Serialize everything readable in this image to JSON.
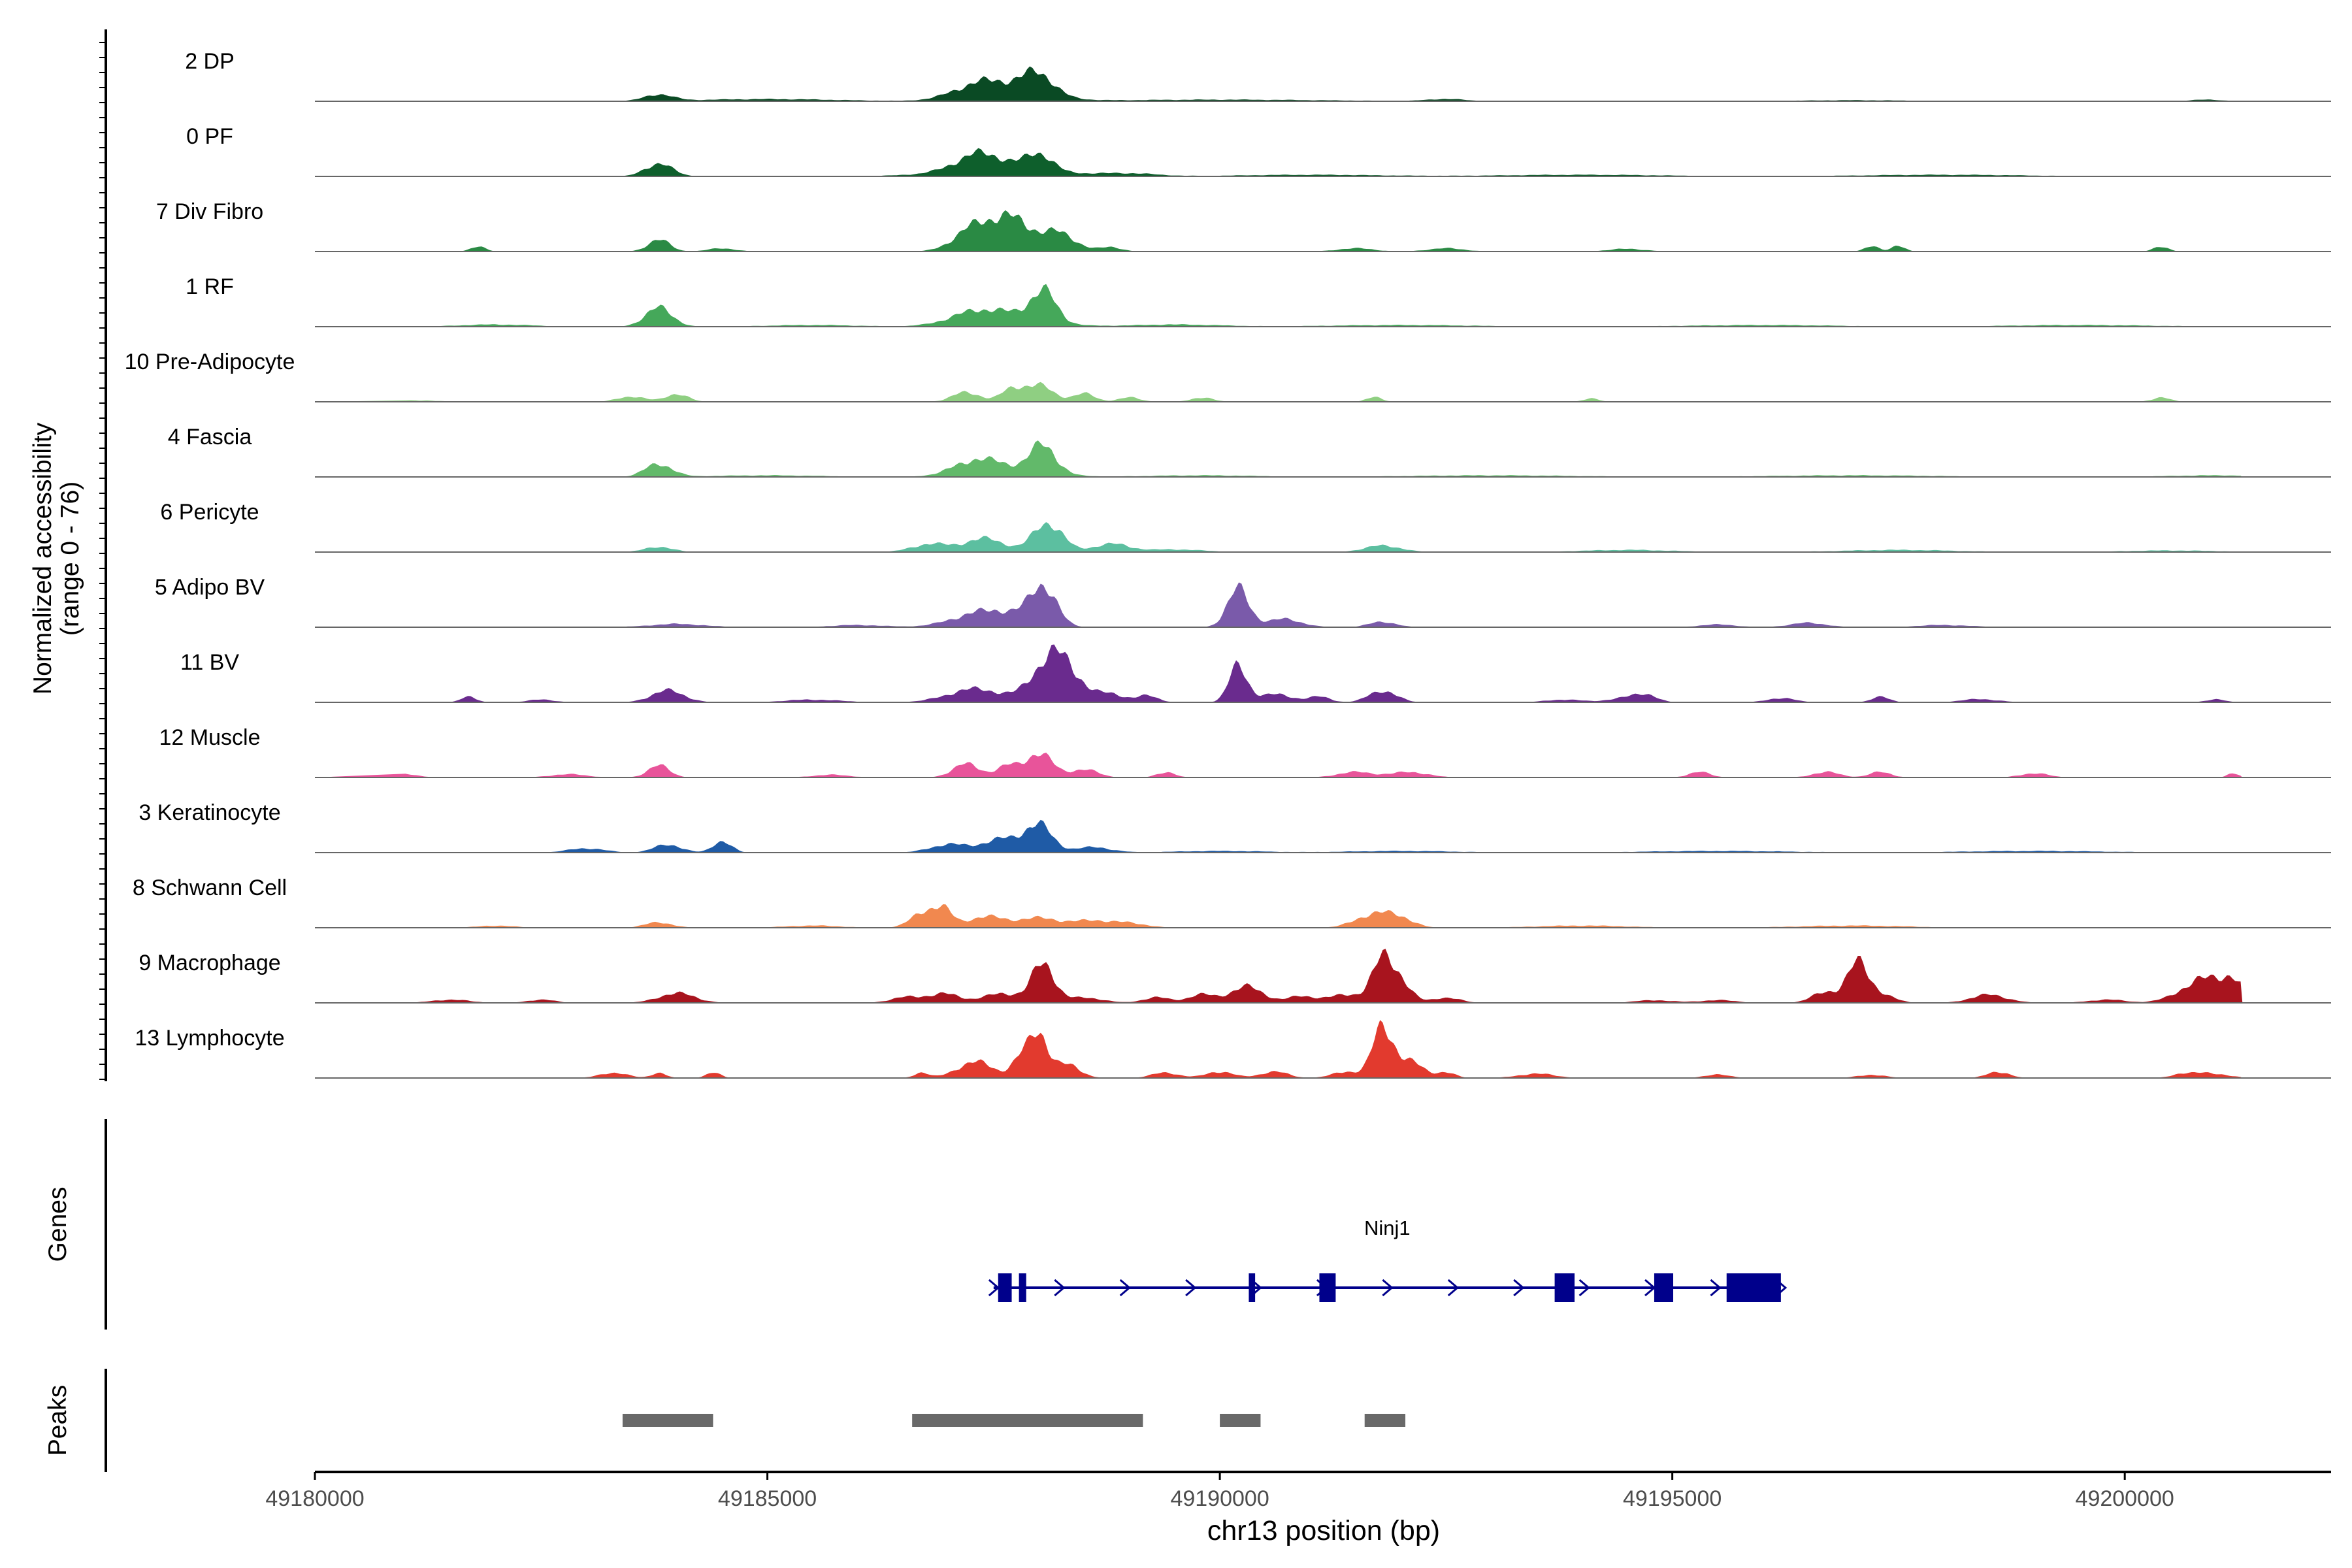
{
  "chart_data": {
    "type": "area",
    "title": "",
    "ylabel_lines": [
      "Normalized accessibility",
      "(range 0 - 76)"
    ],
    "y_range": [
      0,
      76
    ],
    "xlabel": "chr13 position (bp)",
    "chromosome": "chr13",
    "xlim": [
      49180000,
      49202280
    ],
    "x_ticks": [
      49180000,
      49185000,
      49190000,
      49195000,
      49200000
    ],
    "x_tick_labels": [
      "49180000",
      "49185000",
      "49190000",
      "49195000",
      "49200000"
    ],
    "tracks": [
      {
        "name": "2 DP",
        "color": "#0a4a24",
        "peaks": [
          [
            49183800,
            0.12,
            150
          ],
          [
            49187350,
            0.28,
            300
          ],
          [
            49188000,
            0.35,
            160
          ],
          [
            49187800,
            0.2,
            350
          ],
          [
            49185000,
            0.04,
            800
          ],
          [
            49190000,
            0.03,
            1200
          ],
          [
            49192500,
            0.04,
            200
          ],
          [
            49197000,
            0.02,
            600
          ],
          [
            49200900,
            0.03,
            180
          ]
        ]
      },
      {
        "name": "0 PF",
        "color": "#0e5f2c",
        "peaks": [
          [
            49183800,
            0.24,
            150
          ],
          [
            49187350,
            0.3,
            250
          ],
          [
            49188000,
            0.32,
            140
          ],
          [
            49187600,
            0.15,
            600
          ],
          [
            49189000,
            0.05,
            300
          ],
          [
            49191000,
            0.03,
            800
          ],
          [
            49194000,
            0.03,
            900
          ],
          [
            49198000,
            0.03,
            900
          ]
        ]
      },
      {
        "name": "7 Div Fibro",
        "color": "#2a8a44",
        "peaks": [
          [
            49181800,
            0.1,
            80
          ],
          [
            49183800,
            0.22,
            120
          ],
          [
            49184500,
            0.06,
            150
          ],
          [
            49187300,
            0.45,
            220
          ],
          [
            49187700,
            0.55,
            200
          ],
          [
            49188200,
            0.35,
            200
          ],
          [
            49188800,
            0.08,
            120
          ],
          [
            49191500,
            0.06,
            200
          ],
          [
            49192500,
            0.06,
            200
          ],
          [
            49194500,
            0.05,
            200
          ],
          [
            49197200,
            0.1,
            80
          ],
          [
            49197500,
            0.12,
            70
          ],
          [
            49200400,
            0.1,
            80
          ]
        ]
      },
      {
        "name": "1 RF",
        "color": "#45a85a",
        "peaks": [
          [
            49183800,
            0.35,
            150
          ],
          [
            49187300,
            0.2,
            300
          ],
          [
            49188050,
            0.55,
            140
          ],
          [
            49187700,
            0.18,
            400
          ],
          [
            49182000,
            0.04,
            400
          ],
          [
            49185500,
            0.03,
            500
          ],
          [
            49189500,
            0.04,
            500
          ],
          [
            49192000,
            0.03,
            800
          ],
          [
            49196000,
            0.03,
            800
          ],
          [
            49199500,
            0.03,
            800
          ]
        ]
      },
      {
        "name": "10 Pre-Adipocyte",
        "color": "#8fcf82",
        "peaks": [
          [
            49183500,
            0.1,
            150
          ],
          [
            49184000,
            0.15,
            120
          ],
          [
            49187200,
            0.18,
            150
          ],
          [
            49187700,
            0.22,
            120
          ],
          [
            49188000,
            0.3,
            160
          ],
          [
            49188500,
            0.15,
            120
          ],
          [
            49189000,
            0.08,
            120
          ],
          [
            49189800,
            0.08,
            120
          ],
          [
            49191700,
            0.1,
            80
          ],
          [
            49194100,
            0.07,
            80
          ],
          [
            49200400,
            0.08,
            100
          ],
          [
            49181000,
            0.03,
            300
          ]
        ]
      },
      {
        "name": "4 Fascia",
        "color": "#62b96a",
        "peaks": [
          [
            49183800,
            0.24,
            150
          ],
          [
            49187300,
            0.24,
            250
          ],
          [
            49188050,
            0.5,
            140
          ],
          [
            49187700,
            0.15,
            400
          ],
          [
            49185000,
            0.03,
            600
          ],
          [
            49189800,
            0.03,
            600
          ],
          [
            49193000,
            0.03,
            900
          ],
          [
            49197000,
            0.03,
            900
          ],
          [
            49201000,
            0.03,
            500
          ]
        ]
      },
      {
        "name": "6 Pericyte",
        "color": "#5cbfa0",
        "peaks": [
          [
            49183800,
            0.1,
            150
          ],
          [
            49186800,
            0.15,
            200
          ],
          [
            49187400,
            0.25,
            220
          ],
          [
            49188100,
            0.55,
            160
          ],
          [
            49188800,
            0.15,
            200
          ],
          [
            49189500,
            0.05,
            300
          ],
          [
            49191800,
            0.12,
            200
          ],
          [
            49194500,
            0.04,
            500
          ],
          [
            49197500,
            0.04,
            600
          ],
          [
            49200500,
            0.03,
            500
          ]
        ]
      },
      {
        "name": "5 Adipo BV",
        "color": "#7a5aaa",
        "peaks": [
          [
            49187300,
            0.2,
            300
          ],
          [
            49188050,
            0.7,
            140
          ],
          [
            49187700,
            0.2,
            300
          ],
          [
            49190200,
            0.7,
            120
          ],
          [
            49190700,
            0.15,
            200
          ],
          [
            49191800,
            0.1,
            150
          ],
          [
            49184000,
            0.06,
            300
          ],
          [
            49186000,
            0.04,
            300
          ],
          [
            49195500,
            0.05,
            200
          ],
          [
            49196500,
            0.08,
            200
          ],
          [
            49198000,
            0.04,
            300
          ]
        ]
      },
      {
        "name": "11 BV",
        "color": "#6a2b8e",
        "peaks": [
          [
            49181700,
            0.12,
            80
          ],
          [
            49183900,
            0.22,
            180
          ],
          [
            49187300,
            0.25,
            300
          ],
          [
            49188100,
            0.6,
            200
          ],
          [
            49188300,
            0.45,
            200
          ],
          [
            49188800,
            0.15,
            150
          ],
          [
            49189200,
            0.12,
            120
          ],
          [
            49190200,
            0.65,
            100
          ],
          [
            49190600,
            0.15,
            200
          ],
          [
            49191100,
            0.1,
            120
          ],
          [
            49191800,
            0.22,
            150
          ],
          [
            49193800,
            0.05,
            200
          ],
          [
            49194500,
            0.08,
            200
          ],
          [
            49194700,
            0.12,
            120
          ],
          [
            49196200,
            0.08,
            150
          ],
          [
            49197300,
            0.1,
            100
          ],
          [
            49198400,
            0.06,
            200
          ],
          [
            49201000,
            0.06,
            100
          ],
          [
            49182500,
            0.05,
            150
          ],
          [
            49185500,
            0.05,
            300
          ]
        ]
      },
      {
        "name": "12 Muscle",
        "color": "#e8549a",
        "peaks": [
          [
            49183800,
            0.22,
            120
          ],
          [
            49187200,
            0.25,
            150
          ],
          [
            49187650,
            0.2,
            120
          ],
          [
            49188000,
            0.45,
            150
          ],
          [
            49188500,
            0.15,
            150
          ],
          [
            49189400,
            0.1,
            100
          ],
          [
            49191500,
            0.1,
            200
          ],
          [
            49192100,
            0.1,
            200
          ],
          [
            49195300,
            0.1,
            120
          ],
          [
            49196700,
            0.1,
            150
          ],
          [
            49197300,
            0.1,
            120
          ],
          [
            49199000,
            0.08,
            150
          ],
          [
            49201200,
            0.08,
            60
          ],
          [
            49181000,
            0.06,
            150
          ],
          [
            49182800,
            0.06,
            200
          ],
          [
            49185700,
            0.05,
            200
          ]
        ]
      },
      {
        "name": "3 Keratinocyte",
        "color": "#1f5ba6",
        "peaks": [
          [
            49183000,
            0.08,
            200
          ],
          [
            49183900,
            0.15,
            150
          ],
          [
            49184500,
            0.22,
            100
          ],
          [
            49187000,
            0.15,
            200
          ],
          [
            49187600,
            0.25,
            220
          ],
          [
            49188000,
            0.48,
            150
          ],
          [
            49188600,
            0.1,
            200
          ],
          [
            49190000,
            0.03,
            500
          ],
          [
            49192000,
            0.03,
            600
          ],
          [
            49195500,
            0.03,
            800
          ],
          [
            49199000,
            0.03,
            800
          ]
        ]
      },
      {
        "name": "8 Schwann Cell",
        "color": "#f1884f",
        "peaks": [
          [
            49186750,
            0.3,
            150
          ],
          [
            49186950,
            0.25,
            100
          ],
          [
            49187400,
            0.2,
            200
          ],
          [
            49188000,
            0.18,
            250
          ],
          [
            49188600,
            0.12,
            200
          ],
          [
            49189000,
            0.08,
            200
          ],
          [
            49191700,
            0.25,
            200
          ],
          [
            49192000,
            0.15,
            150
          ],
          [
            49183800,
            0.1,
            150
          ],
          [
            49182000,
            0.04,
            200
          ],
          [
            49185500,
            0.04,
            300
          ],
          [
            49194000,
            0.04,
            500
          ],
          [
            49197000,
            0.04,
            600
          ]
        ]
      },
      {
        "name": "9 Macrophage",
        "color": "#a8141e",
        "peaks": [
          [
            49181500,
            0.06,
            200
          ],
          [
            49182500,
            0.06,
            150
          ],
          [
            49184000,
            0.18,
            200
          ],
          [
            49186600,
            0.12,
            200
          ],
          [
            49187000,
            0.15,
            150
          ],
          [
            49187600,
            0.18,
            200
          ],
          [
            49188050,
            0.75,
            120
          ],
          [
            49188500,
            0.1,
            200
          ],
          [
            49189300,
            0.1,
            150
          ],
          [
            49189800,
            0.15,
            150
          ],
          [
            49190300,
            0.3,
            180
          ],
          [
            49190900,
            0.12,
            150
          ],
          [
            49191400,
            0.15,
            200
          ],
          [
            49191800,
            0.75,
            120
          ],
          [
            49192000,
            0.35,
            120
          ],
          [
            49192500,
            0.1,
            150
          ],
          [
            49194800,
            0.05,
            200
          ],
          [
            49195500,
            0.05,
            200
          ],
          [
            49196700,
            0.2,
            150
          ],
          [
            49197050,
            0.7,
            120
          ],
          [
            49197300,
            0.15,
            150
          ],
          [
            49198500,
            0.15,
            200
          ],
          [
            49199800,
            0.06,
            200
          ],
          [
            49200900,
            0.45,
            260
          ],
          [
            49201200,
            0.25,
            120
          ]
        ]
      },
      {
        "name": "13 Lymphocyte",
        "color": "#e23a2e",
        "peaks": [
          [
            49180700,
            0.05,
            60
          ],
          [
            49183300,
            0.1,
            150
          ],
          [
            49183800,
            0.1,
            80
          ],
          [
            49184400,
            0.1,
            80
          ],
          [
            49186700,
            0.1,
            80
          ],
          [
            49187300,
            0.3,
            200
          ],
          [
            49187800,
            0.35,
            100
          ],
          [
            49188000,
            0.8,
            100
          ],
          [
            49188300,
            0.25,
            150
          ],
          [
            49189400,
            0.1,
            150
          ],
          [
            49190000,
            0.12,
            150
          ],
          [
            49190600,
            0.12,
            150
          ],
          [
            49191400,
            0.12,
            150
          ],
          [
            49191800,
            0.95,
            110
          ],
          [
            49192100,
            0.3,
            150
          ],
          [
            49192500,
            0.1,
            100
          ],
          [
            49193500,
            0.08,
            200
          ],
          [
            49195500,
            0.06,
            150
          ],
          [
            49197200,
            0.06,
            150
          ],
          [
            49198600,
            0.12,
            120
          ],
          [
            49200600,
            0.05,
            100
          ],
          [
            49200900,
            0.1,
            200
          ]
        ]
      }
    ],
    "genes": [
      {
        "name": "Ninj1",
        "start": 49187500,
        "end": 49196200,
        "strand": "+",
        "exons": [
          [
            49187550,
            49187700
          ],
          [
            49187780,
            49187860
          ],
          [
            49190320,
            49190390
          ],
          [
            49191100,
            49191280
          ],
          [
            49193700,
            49193920
          ],
          [
            49194800,
            49195010
          ],
          [
            49195600,
            49196200
          ]
        ]
      }
    ],
    "peaks_track": [
      [
        49183400,
        49184400
      ],
      [
        49186600,
        49189150
      ],
      [
        49190000,
        49190450
      ],
      [
        49191600,
        49192050
      ]
    ]
  },
  "panels": {
    "genes_label": "Genes",
    "peaks_label": "Peaks"
  },
  "colors": {
    "gene": "#00008b",
    "peak_bar": "#696969",
    "baseline": "#666666",
    "axis": "#000000"
  }
}
